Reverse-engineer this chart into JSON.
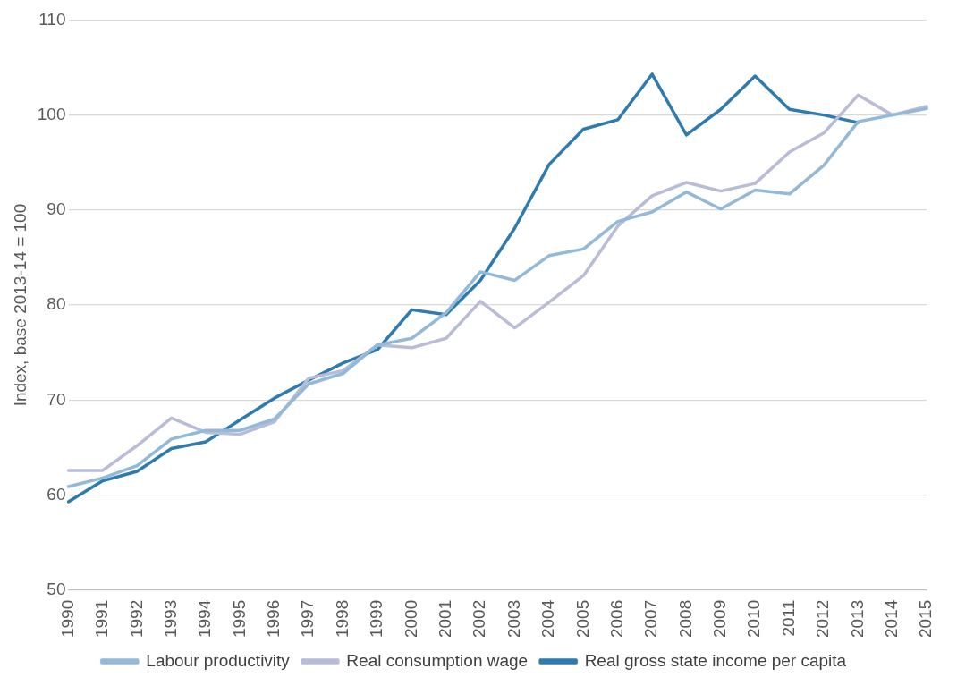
{
  "chart_data": {
    "type": "line",
    "ylabel": "Index, base 2013-14 = 100",
    "categories": [
      "1990",
      "1991",
      "1992",
      "1993",
      "1994",
      "1995",
      "1996",
      "1997",
      "1998",
      "1999",
      "2000",
      "2001",
      "2002",
      "2003",
      "2004",
      "2005",
      "2006",
      "2007",
      "2008",
      "2009",
      "2010",
      "2011",
      "2012",
      "2013",
      "2014",
      "2015"
    ],
    "series": [
      {
        "name": "Labour productivity",
        "color": "#93b9d8",
        "values": [
          60.9,
          61.8,
          63.1,
          65.9,
          66.8,
          66.8,
          68.0,
          71.7,
          72.8,
          75.8,
          76.5,
          79.2,
          83.5,
          82.6,
          85.2,
          85.9,
          88.8,
          89.8,
          91.9,
          90.1,
          92.1,
          91.7,
          94.7,
          99.3,
          100.0,
          100.7
        ]
      },
      {
        "name": "Real consumption wage",
        "color": "#b8bcd6",
        "values": [
          62.6,
          62.6,
          65.2,
          68.1,
          66.6,
          66.4,
          67.7,
          72.3,
          73.1,
          75.8,
          75.5,
          76.5,
          80.4,
          77.6,
          80.3,
          83.1,
          88.3,
          91.5,
          92.9,
          92.0,
          92.8,
          96.1,
          98.1,
          102.1,
          100.0,
          100.9
        ]
      },
      {
        "name": "Real gross state income per capita",
        "color": "#2e7bb0",
        "values": [
          59.3,
          61.5,
          62.5,
          64.9,
          65.6,
          67.9,
          70.2,
          72.1,
          73.9,
          75.3,
          79.5,
          79.0,
          82.6,
          88.1,
          94.8,
          98.5,
          99.5,
          104.3,
          97.9,
          100.6,
          104.1,
          100.6,
          100.0,
          99.2,
          null,
          null
        ]
      }
    ],
    "ylim": [
      50,
      110
    ],
    "yticks": [
      50,
      60,
      70,
      80,
      90,
      100,
      110
    ],
    "grid": "y",
    "legend": "bottom",
    "marker": "none",
    "line_style": "solid"
  }
}
